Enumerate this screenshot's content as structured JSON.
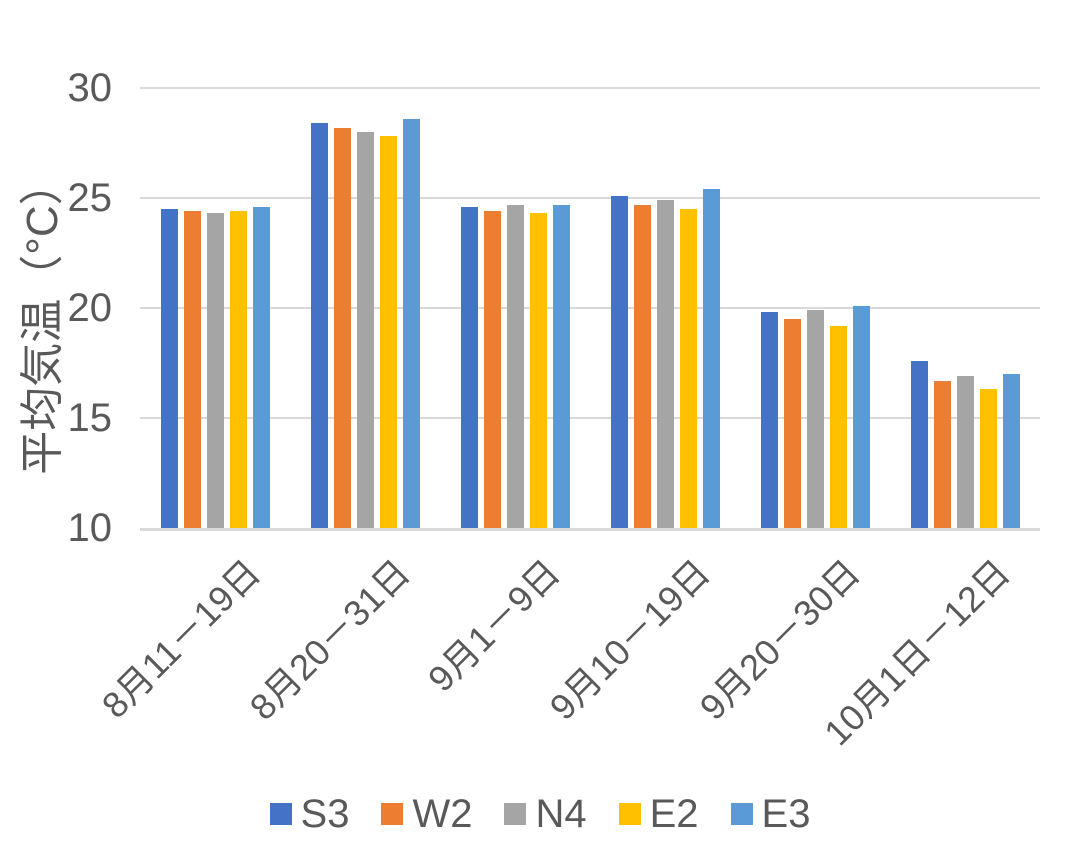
{
  "chart_data": {
    "type": "bar",
    "title": "",
    "xlabel": "",
    "ylabel": "平均気温（°C）",
    "ylim": [
      10,
      30
    ],
    "yticks": [
      10,
      15,
      20,
      25,
      30
    ],
    "grid": true,
    "legend_position": "bottom",
    "x_label_rotation": -45,
    "categories": [
      "8月11－19日",
      "8月20－31日",
      "9月1－9日",
      "9月10－19日",
      "9月20－30日",
      "10月1日－12日"
    ],
    "series": [
      {
        "name": "S3",
        "color": "#4472C4",
        "values": [
          24.5,
          28.4,
          24.6,
          25.1,
          19.8,
          17.6
        ]
      },
      {
        "name": "W2",
        "color": "#ED7D31",
        "values": [
          24.4,
          28.2,
          24.4,
          24.7,
          19.5,
          16.7
        ]
      },
      {
        "name": "N4",
        "color": "#A5A5A5",
        "values": [
          24.3,
          28.0,
          24.7,
          24.9,
          19.9,
          16.9
        ]
      },
      {
        "name": "E2",
        "color": "#FFC000",
        "values": [
          24.4,
          27.8,
          24.3,
          24.5,
          19.2,
          16.3
        ]
      },
      {
        "name": "E3",
        "color": "#5B9BD5",
        "values": [
          24.6,
          28.6,
          24.7,
          25.4,
          20.1,
          17.0
        ]
      }
    ]
  },
  "colors": {
    "gridline": "#D9D9D9",
    "axis_text": "#595959",
    "background": "#FFFFFF"
  }
}
